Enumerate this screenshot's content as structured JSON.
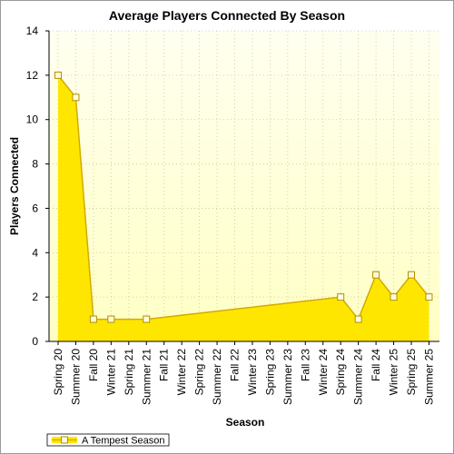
{
  "chart_data": {
    "type": "area",
    "title": "Average Players Connected By Season",
    "xlabel": "Season",
    "ylabel": "Players Connected",
    "ylim": [
      0,
      14
    ],
    "yticks": [
      0,
      2,
      4,
      6,
      8,
      10,
      12,
      14
    ],
    "categories": [
      "Spring 20",
      "Summer 20",
      "Fall 20",
      "Winter 21",
      "Spring 21",
      "Summer 21",
      "Fall 21",
      "Winter 22",
      "Spring 22",
      "Summer 22",
      "Fall 22",
      "Winter 23",
      "Spring 23",
      "Summer 23",
      "Fall 23",
      "Winter 24",
      "Spring 24",
      "Summer 24",
      "Fall 24",
      "Winter 25",
      "Spring 25",
      "Summer 25"
    ],
    "series": [
      {
        "name": "A Tempest Season",
        "values": [
          12,
          11,
          1,
          1,
          null,
          1,
          null,
          null,
          null,
          null,
          null,
          null,
          null,
          null,
          null,
          null,
          2,
          1,
          3,
          2,
          3,
          2
        ]
      }
    ],
    "grid": true,
    "legend": "bottom-left",
    "colors": {
      "fill": "#ffe600",
      "line": "#d4a900",
      "marker_fill": "#fffbe0",
      "marker_stroke": "#b38f00",
      "plot_bg_top": "#fffff0",
      "plot_bg_bottom": "#ffffc4",
      "grid": "#c8c8a0"
    }
  }
}
